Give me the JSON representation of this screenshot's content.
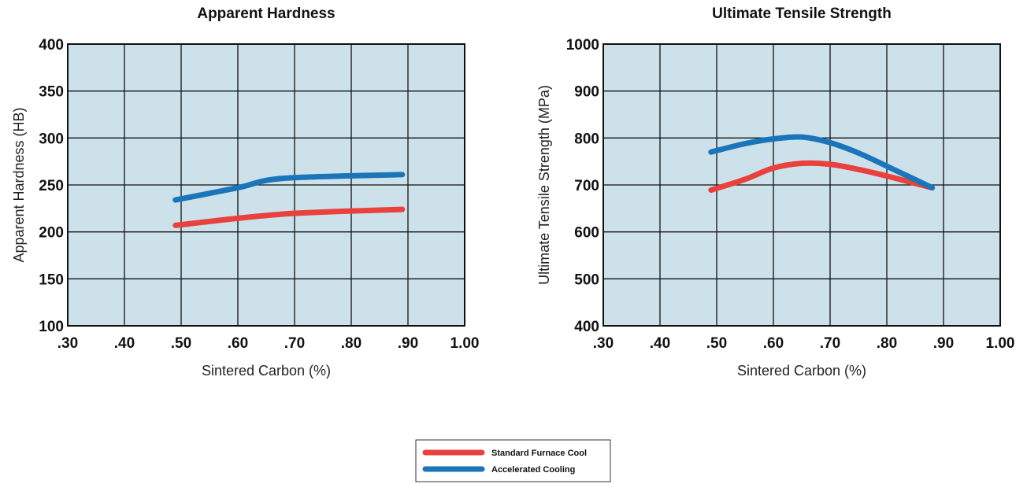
{
  "chart_data": [
    {
      "type": "line",
      "title": "Apparent Hardness",
      "xlabel": "Sintered Carbon (%)",
      "ylabel": "Apparent Hardness  (HB)",
      "xlim": [
        0.3,
        1.0
      ],
      "ylim": [
        100,
        400
      ],
      "x_ticks": [
        0.3,
        0.4,
        0.5,
        0.6,
        0.7,
        0.8,
        0.9,
        1.0
      ],
      "x_tick_labels": [
        ".30",
        ".40",
        ".50",
        ".60",
        ".70",
        ".80",
        ".90",
        "1.00"
      ],
      "y_ticks": [
        100,
        150,
        200,
        250,
        300,
        350,
        400
      ],
      "y_tick_labels": [
        "100",
        "150",
        "200",
        "250",
        "300",
        "350",
        "400"
      ],
      "grid": true,
      "series": [
        {
          "name": "Standard Furnace Cool",
          "color": "#e8413e",
          "x": [
            0.49,
            0.68,
            0.89
          ],
          "y": [
            207,
            219,
            224
          ]
        },
        {
          "name": "Accelerated Cooling",
          "color": "#1a76b9",
          "x": [
            0.49,
            0.6,
            0.68,
            0.89
          ],
          "y": [
            234,
            247,
            257,
            261
          ]
        }
      ]
    },
    {
      "type": "line",
      "title": "Ultimate Tensile Strength",
      "xlabel": "Sintered Carbon (%)",
      "ylabel": "Ultimate Tensile Strength (MPa)",
      "xlim": [
        0.3,
        1.0
      ],
      "ylim": [
        400,
        1000
      ],
      "x_ticks": [
        0.3,
        0.4,
        0.5,
        0.6,
        0.7,
        0.8,
        0.9,
        1.0
      ],
      "x_tick_labels": [
        ".30",
        ".40",
        ".50",
        ".60",
        ".70",
        ".80",
        ".90",
        "1.00"
      ],
      "y_ticks": [
        400,
        500,
        600,
        700,
        800,
        900,
        1000
      ],
      "y_tick_labels": [
        "400",
        "500",
        "600",
        "700",
        "800",
        "900",
        "1000"
      ],
      "grid": true,
      "series": [
        {
          "name": "Standard Furnace Cool",
          "color": "#e8413e",
          "x": [
            0.49,
            0.55,
            0.6,
            0.65,
            0.7,
            0.75,
            0.8,
            0.88
          ],
          "y": [
            689,
            712,
            736,
            746,
            744,
            733,
            719,
            694
          ]
        },
        {
          "name": "Accelerated Cooling",
          "color": "#1a76b9",
          "x": [
            0.49,
            0.55,
            0.6,
            0.65,
            0.7,
            0.75,
            0.8,
            0.88
          ],
          "y": [
            770,
            788,
            798,
            802,
            790,
            768,
            740,
            694
          ]
        }
      ]
    }
  ],
  "plot_style": {
    "plot_bg": "#cde1ea",
    "grid_color": "#111111"
  },
  "legend": {
    "position": "bottom-center",
    "items": [
      {
        "label": "Standard Furnace Cool",
        "color": "#e8413e"
      },
      {
        "label": "Accelerated Cooling",
        "color": "#1a76b9"
      }
    ]
  }
}
